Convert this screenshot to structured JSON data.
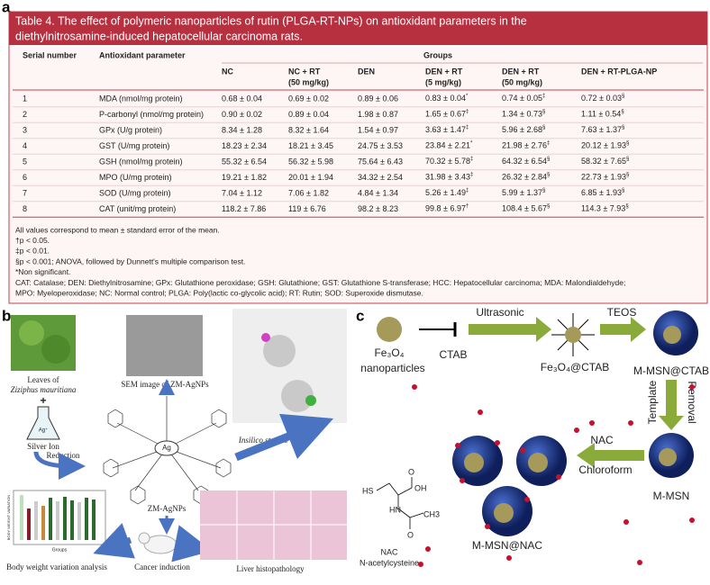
{
  "panel_a": {
    "label": "a",
    "title_lines": [
      "Table 4. The effect of polymeric nanoparticles of rutin (PLGA-RT-NPs) on antioxidant parameters in the",
      "diethylnitrosamine-induced hepatocellular carcinoma rats."
    ],
    "header": {
      "serial": "Serial number",
      "parameter": "Antioxidant parameter",
      "groups": "Groups",
      "columns": [
        [
          "NC"
        ],
        [
          "NC + RT",
          "(50 mg/kg)"
        ],
        [
          "DEN"
        ],
        [
          "DEN + RT",
          "(5 mg/kg)"
        ],
        [
          "DEN + RT",
          "(50 mg/kg)"
        ],
        [
          "DEN + RT-PLGA-NP"
        ]
      ]
    },
    "rows": [
      [
        "1",
        "MDA (nmol/mg protein)",
        "0.68 ± 0.04",
        "0.69 ± 0.02",
        "0.89 ± 0.06",
        {
          "v": "0.83 ± 0.04",
          "sup": "*"
        },
        {
          "v": "0.74 ± 0.05",
          "sup": "‡"
        },
        {
          "v": "0.72 ± 0.03",
          "sup": "§"
        }
      ],
      [
        "2",
        "P-carbonyl (nmol/mg protein)",
        "0.90 ± 0.02",
        "0.89 ± 0.04",
        "1.98 ± 0.87",
        {
          "v": "1.65 ± 0.67",
          "sup": "‡"
        },
        {
          "v": "1.34 ± 0.73",
          "sup": "§"
        },
        {
          "v": "1.11 ± 0.54",
          "sup": "§"
        }
      ],
      [
        "3",
        "GPx (U/g protein)",
        "8.34 ± 1.28",
        "8.32 ± 1.64",
        "1.54 ± 0.97",
        {
          "v": "3.63 ± 1.47",
          "sup": "‡"
        },
        {
          "v": "5.96 ± 2.68",
          "sup": "§"
        },
        {
          "v": "7.63 ± 1.37",
          "sup": "§"
        }
      ],
      [
        "4",
        "GST (U/mg protein)",
        "18.23 ± 2.34",
        "18.21 ± 3.45",
        "24.75 ± 3.53",
        {
          "v": "23.84 ± 2.21",
          "sup": "*"
        },
        {
          "v": "21.98 ± 2.76",
          "sup": "‡"
        },
        {
          "v": "20.12 ± 1.93",
          "sup": "§"
        }
      ],
      [
        "5",
        "GSH (nmol/mg protein)",
        "55.32 ± 6.54",
        "56.32 ± 5.98",
        "75.64 ± 6.43",
        {
          "v": "70.32 ± 5.78",
          "sup": "‡"
        },
        {
          "v": "64.32 ± 6.54",
          "sup": "§"
        },
        {
          "v": "58.32 ± 7.65",
          "sup": "§"
        }
      ],
      [
        "6",
        "MPO (U/mg protein)",
        "19.21 ± 1.82",
        "20.01 ± 1.94",
        "34.32 ± 2.54",
        {
          "v": "31.98 ± 3.43",
          "sup": "‡"
        },
        {
          "v": "26.32 ± 2.84",
          "sup": "§"
        },
        {
          "v": "22.73 ± 1.93",
          "sup": "§"
        }
      ],
      [
        "7",
        "SOD (U/mg protein)",
        "7.04 ± 1.12",
        "7.06 ± 1.82",
        "4.84 ± 1.34",
        {
          "v": "5.26 ± 1.49",
          "sup": "‡"
        },
        {
          "v": "5.99 ± 1.37",
          "sup": "§"
        },
        {
          "v": "6.85 ± 1.93",
          "sup": "§"
        }
      ],
      [
        "8",
        "CAT (unit/mg protein)",
        "118.2 ± 7.86",
        "119 ± 6.76",
        "98.2 ± 8.23",
        {
          "v": "99.8 ± 6.97",
          "sup": "†"
        },
        {
          "v": "108.4 ± 5.67",
          "sup": "§"
        },
        {
          "v": "114.3 ± 7.93",
          "sup": "§"
        }
      ]
    ],
    "footnotes": [
      "All values correspond to mean ± standard error of the mean.",
      "†p < 0.05.",
      "‡p < 0.01.",
      "§p < 0.001; ANOVA, followed by Dunnett's multiple comparison test.",
      "*Non significant.",
      "CAT: Catalase; DEN: Diethylnitrosamine; GPx: Glutathione peroxidase; GSH: Glutathione; GST: Glutathione S-transferase; HCC: Hepatocellular carcinoma; MDA: Malondialdehyde;",
      "MPO: Myeloperoxidase; NC: Normal control; PLGA: Poly(lactic co-glycolic acid); RT: Rutin; SOD: Superoxide dismutase."
    ]
  },
  "panel_b": {
    "label": "b",
    "leaves": "Leaves of",
    "species": "Ziziphus mauritiana",
    "plus": "+",
    "ion_symbol": "Ag⁺",
    "silver_ion": "Silver Ion",
    "reduction": "Reduction",
    "sem": "SEM image of ZM-AgNPs",
    "center": "Ag",
    "insilico": "Insilico studies",
    "product": "ZM-AgNPs",
    "chart_axis": "BODY WEIGHT VARIATION",
    "chart_x": "Groups",
    "weight": "Body weight variation analysis",
    "cancer": "Cancer induction",
    "liver": "Liver histopathology"
  },
  "panel_c": {
    "label": "c",
    "fe3o4": "Fe₃O₄",
    "nanoparticles": "nanoparticles",
    "ctab": "CTAB",
    "ultrasonic": "Ultrasonic",
    "fe_ctab": "Fe₃O₄@CTAB",
    "teos": "TEOS",
    "msn_ctab": "M-MSN@CTAB",
    "removal": "Removal",
    "template": "Template",
    "msn": "M-MSN",
    "nac": "NAC",
    "chloroform": "Chloroform",
    "msn_nac": "M-MSN@NAC",
    "molecule": {
      "hs": "HS",
      "oh": "OH",
      "o1": "O",
      "hn": "HN",
      "ch3": "CH3",
      "o2": "O",
      "name": "NAC",
      "full": "N-acetylcysteine"
    }
  }
}
